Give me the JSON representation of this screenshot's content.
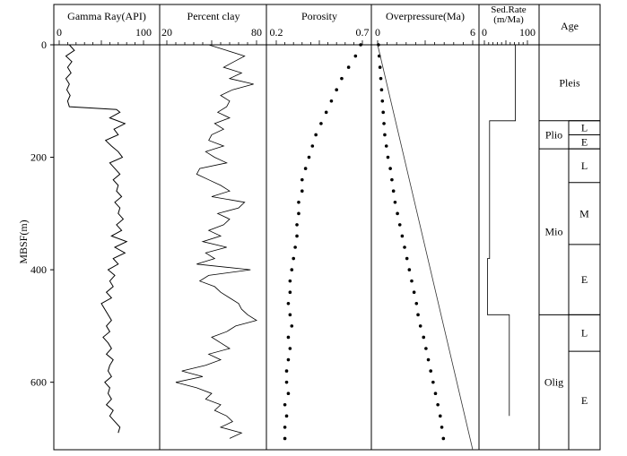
{
  "chart_data": {
    "type": "line",
    "description_hidden": false,
    "y_axis": {
      "label": "MBSF(m)",
      "ticks": [
        0,
        200,
        400,
        600
      ],
      "range": [
        0,
        720
      ],
      "inverted": true
    },
    "tracks": [
      {
        "id": "gamma",
        "header": "Gamma Ray(API)",
        "x_ticks": [
          "0",
          "100"
        ],
        "x_range": [
          0,
          100
        ],
        "style": "wiggle-line",
        "depth_values": [
          0,
          10,
          20,
          30,
          40,
          50,
          60,
          70,
          80,
          90,
          100,
          110,
          115,
          120,
          130,
          140,
          150,
          160,
          170,
          180,
          190,
          200,
          210,
          220,
          230,
          240,
          250,
          260,
          270,
          280,
          290,
          300,
          310,
          320,
          330,
          340,
          350,
          360,
          370,
          380,
          390,
          400,
          410,
          420,
          430,
          440,
          450,
          460,
          470,
          480,
          490,
          500,
          510,
          520,
          530,
          540,
          550,
          560,
          570,
          580,
          590,
          600,
          610,
          620,
          630,
          640,
          650,
          660,
          670,
          680,
          690
        ],
        "values": [
          12,
          18,
          8,
          15,
          10,
          14,
          8,
          12,
          9,
          13,
          10,
          12,
          68,
          72,
          60,
          78,
          65,
          70,
          55,
          62,
          70,
          75,
          60,
          66,
          72,
          64,
          70,
          68,
          74,
          66,
          72,
          70,
          76,
          68,
          74,
          62,
          80,
          66,
          78,
          64,
          70,
          58,
          66,
          60,
          64,
          56,
          62,
          50,
          54,
          58,
          62,
          56,
          60,
          52,
          58,
          62,
          56,
          64,
          60,
          58,
          62,
          54,
          60,
          58,
          62,
          56,
          64,
          60,
          66,
          72,
          70
        ]
      },
      {
        "id": "clay",
        "header": "Percent clay",
        "x_ticks": [
          "20",
          "80"
        ],
        "x_range": [
          20,
          80
        ],
        "style": "line",
        "depth_values": [
          0,
          10,
          20,
          30,
          40,
          50,
          60,
          70,
          80,
          90,
          100,
          110,
          120,
          130,
          140,
          150,
          160,
          170,
          180,
          190,
          200,
          210,
          220,
          230,
          240,
          250,
          260,
          270,
          280,
          290,
          300,
          310,
          320,
          330,
          340,
          350,
          360,
          370,
          380,
          390,
          400,
          410,
          420,
          430,
          440,
          450,
          460,
          470,
          480,
          490,
          500,
          510,
          520,
          530,
          540,
          550,
          560,
          570,
          580,
          590,
          600,
          610,
          620,
          630,
          640,
          650,
          660,
          670,
          680,
          690,
          700
        ],
        "values": [
          48,
          60,
          72,
          65,
          58,
          70,
          62,
          78,
          64,
          56,
          62,
          60,
          54,
          62,
          52,
          58,
          50,
          48,
          58,
          46,
          52,
          60,
          42,
          40,
          48,
          56,
          62,
          50,
          72,
          68,
          54,
          62,
          58,
          48,
          56,
          44,
          60,
          46,
          52,
          40,
          76,
          48,
          42,
          52,
          56,
          62,
          68,
          70,
          74,
          80,
          66,
          60,
          50,
          56,
          62,
          48,
          56,
          46,
          30,
          44,
          26,
          40,
          50,
          46,
          56,
          52,
          60,
          64,
          56,
          70,
          62
        ]
      },
      {
        "id": "porosity",
        "header": "Porosity",
        "x_ticks": [
          "0.2",
          "0.7"
        ],
        "x_range": [
          0.2,
          0.7
        ],
        "style": "dots",
        "depth_values": [
          0,
          20,
          40,
          60,
          80,
          100,
          120,
          140,
          160,
          180,
          200,
          220,
          240,
          260,
          280,
          300,
          320,
          340,
          360,
          380,
          400,
          420,
          440,
          460,
          480,
          500,
          520,
          540,
          560,
          580,
          600,
          620,
          640,
          660,
          680,
          700
        ],
        "values": [
          0.69,
          0.66,
          0.62,
          0.58,
          0.55,
          0.52,
          0.49,
          0.46,
          0.43,
          0.41,
          0.39,
          0.37,
          0.35,
          0.35,
          0.33,
          0.33,
          0.32,
          0.32,
          0.31,
          0.3,
          0.29,
          0.28,
          0.28,
          0.27,
          0.28,
          0.29,
          0.27,
          0.28,
          0.27,
          0.26,
          0.26,
          0.27,
          0.25,
          0.26,
          0.25,
          0.25
        ]
      },
      {
        "id": "overpressure",
        "header": "Overpressure(Ma)",
        "x_ticks": [
          "0",
          "6"
        ],
        "x_range": [
          0,
          6
        ],
        "style": "dots-with-line",
        "depth_values": [
          0,
          20,
          40,
          60,
          80,
          100,
          120,
          140,
          160,
          180,
          200,
          220,
          240,
          260,
          280,
          300,
          320,
          340,
          360,
          380,
          400,
          420,
          440,
          460,
          480,
          500,
          520,
          540,
          560,
          580,
          600,
          620,
          640,
          660,
          680,
          700
        ],
        "values": [
          0.05,
          0.1,
          0.15,
          0.2,
          0.25,
          0.3,
          0.35,
          0.4,
          0.45,
          0.55,
          0.65,
          0.8,
          0.9,
          1.0,
          1.1,
          1.25,
          1.4,
          1.55,
          1.7,
          1.85,
          2.0,
          2.15,
          2.3,
          2.45,
          2.55,
          2.7,
          2.9,
          3.05,
          3.2,
          3.35,
          3.5,
          3.65,
          3.8,
          3.95,
          4.05,
          4.15
        ],
        "reference_line": {
          "depth": [
            0,
            720
          ],
          "values": [
            0,
            6
          ]
        }
      },
      {
        "id": "sedrate",
        "header_line1": "Sed.Rate",
        "header_line2": "(m/Ma)",
        "x_ticks": [
          "0",
          "100"
        ],
        "x_range": [
          0,
          100
        ],
        "style": "step",
        "depth_values": [
          0,
          135,
          135,
          380,
          380,
          480,
          480,
          660
        ],
        "values": [
          72,
          72,
          12,
          12,
          7,
          7,
          58,
          58
        ]
      }
    ],
    "age_column": {
      "header": "Age",
      "epochs": [
        {
          "label": "Pleis",
          "top": 0,
          "bottom": 135
        },
        {
          "label": "Plio",
          "top": 135,
          "bottom": 185
        },
        {
          "label": "Mio",
          "top": 185,
          "bottom": 480
        },
        {
          "label": "Olig",
          "top": 480,
          "bottom": 720
        }
      ],
      "subdivisions": [
        {
          "label": "L",
          "top": 135,
          "bottom": 160
        },
        {
          "label": "E",
          "top": 160,
          "bottom": 185
        },
        {
          "label": "L",
          "top": 185,
          "bottom": 245
        },
        {
          "label": "M",
          "top": 245,
          "bottom": 355
        },
        {
          "label": "E",
          "top": 355,
          "bottom": 480
        },
        {
          "label": "L",
          "top": 480,
          "bottom": 545
        },
        {
          "label": "E",
          "top": 545,
          "bottom": 720
        }
      ]
    }
  }
}
